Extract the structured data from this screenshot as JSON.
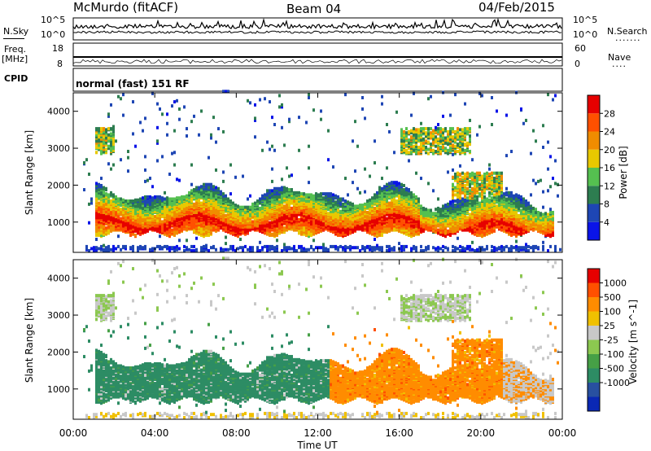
{
  "header": {
    "station": "McMurdo (fitACF)",
    "beam": "Beam 04",
    "date": "04/Feb/2015"
  },
  "aux": {
    "nsky_label": "N.Sky",
    "nsearch_label": "N.Search",
    "freq_label": "Freq.",
    "freq_unit": "[MHz]",
    "nave_label": "Nave",
    "cpid_label": "CPID",
    "cpid_value": "normal (fast) 151 RF",
    "noise_ticks_left": [
      "10^5",
      "10^0"
    ],
    "noise_ticks_right": [
      "10^5",
      "10^0"
    ],
    "freq_ticks": [
      "18",
      "8"
    ],
    "nave_ticks": [
      "60",
      "0"
    ]
  },
  "chart_data": [
    {
      "type": "heatmap",
      "panel": "power",
      "ylabel": "Slant Range [km]",
      "ylim": [
        180,
        4500
      ],
      "yticks": [
        1000,
        2000,
        3000,
        4000
      ],
      "colorbar_label": "Power [dB]",
      "colorbar_ticks": [
        4,
        8,
        12,
        16,
        20,
        24,
        28
      ],
      "colorbar_colors": [
        "#0a14e8",
        "#1e46b4",
        "#2d7d50",
        "#55c050",
        "#e8c800",
        "#f08c00",
        "#ff5000",
        "#e60000"
      ],
      "background_scatter_color": "#1e46b4",
      "xlim": [
        "00:00",
        "00:00"
      ]
    },
    {
      "type": "heatmap",
      "panel": "velocity",
      "ylabel": "Slant Range [km]",
      "ylim": [
        180,
        4500
      ],
      "yticks": [
        1000,
        2000,
        3000,
        4000
      ],
      "colorbar_label": "Velocity [m s^-1]",
      "colorbar_ticks": [
        "1000",
        "500",
        "100",
        "25",
        "-25",
        "-100",
        "-500",
        "-1000"
      ],
      "colorbar_colors": [
        "#0a28b4",
        "#2850a0",
        "#2d8c64",
        "#46a046",
        "#8cc850",
        "#c8c8c8",
        "#f0c000",
        "#ff8c00",
        "#ff5000",
        "#e60000"
      ],
      "xlim": [
        "00:00",
        "00:00"
      ]
    }
  ],
  "xaxis": {
    "ticks": [
      "00:00",
      "04:00",
      "08:00",
      "12:00",
      "16:00",
      "20:00",
      "00:00"
    ],
    "label": "Time UT"
  }
}
